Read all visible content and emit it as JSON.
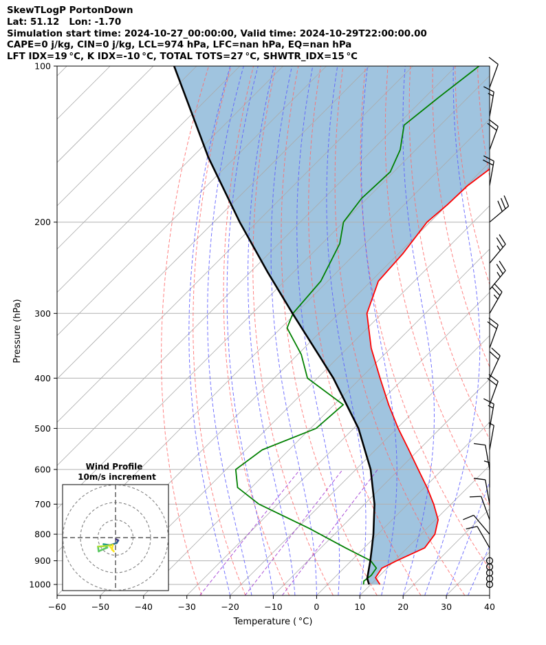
{
  "title_lines": [
    "SkewTLogP PortonDown",
    "Lat: 51.12   Lon: -1.70",
    "Simulation start time: 2024-10-27_00:00:00, Valid time: 2024-10-29T22:00:00.00",
    "CAPE=0 j/kg, CIN=0 j/kg, LCL=974 hPa, LFC=nan hPa, EQ=nan hPa",
    "LFT IDX=19 °C, K IDX=-10 °C, TOTAL TOTS=27 °C, SHWTR_IDX=15 °C"
  ],
  "colors": {
    "temperature": "#ff0000",
    "dewpoint": "#008000",
    "parcel": "#000000",
    "shade": "#a0c4df",
    "dry_adiabat": "#ff6b6b",
    "moist_adiabat": "#5a5aff",
    "mixing_ratio": "#9b30d0",
    "isotherm": "#aaaaaa"
  },
  "chart_data": {
    "type": "skewt",
    "xlabel": "Temperature ( °C)",
    "ylabel": "Pressure (hPa)",
    "xlim": [
      -60,
      40
    ],
    "ylim": [
      1050,
      100
    ],
    "x_ticks": [
      -60,
      -50,
      -40,
      -30,
      -20,
      -10,
      0,
      10,
      20,
      30,
      40
    ],
    "x_tick_labels": [
      "−60",
      "−50",
      "−40",
      "−30",
      "−20",
      "−10",
      "0",
      "10",
      "20",
      "30",
      "40"
    ],
    "y_ticks": [
      1000,
      900,
      800,
      700,
      600,
      500,
      400,
      300,
      200,
      100
    ],
    "y_tick_labels": [
      "1000",
      "900",
      "800",
      "700",
      "600",
      "500",
      "400",
      "300",
      "200",
      "100"
    ],
    "y_scale": "log",
    "grid": true,
    "temperature_profile": [
      {
        "p": 1000,
        "t": 12.1
      },
      {
        "p": 970,
        "t": 9.5
      },
      {
        "p": 930,
        "t": 8.8
      },
      {
        "p": 900,
        "t": 10.5
      },
      {
        "p": 850,
        "t": 14.0
      },
      {
        "p": 800,
        "t": 13.2
      },
      {
        "p": 750,
        "t": 10.6
      },
      {
        "p": 700,
        "t": 6.0
      },
      {
        "p": 650,
        "t": 0.6
      },
      {
        "p": 600,
        "t": -5.6
      },
      {
        "p": 550,
        "t": -12.3
      },
      {
        "p": 500,
        "t": -19.7
      },
      {
        "p": 450,
        "t": -27.4
      },
      {
        "p": 400,
        "t": -35.5
      },
      {
        "p": 350,
        "t": -44.5
      },
      {
        "p": 300,
        "t": -53.5
      },
      {
        "p": 260,
        "t": -58.3
      },
      {
        "p": 230,
        "t": -59.0
      },
      {
        "p": 200,
        "t": -60.7
      },
      {
        "p": 185,
        "t": -60.0
      },
      {
        "p": 170,
        "t": -59.7
      },
      {
        "p": 140,
        "t": -56.4
      },
      {
        "p": 120,
        "t": -55.4
      },
      {
        "p": 100,
        "t": -57.0
      }
    ],
    "dewpoint_profile": [
      {
        "p": 1000,
        "t": 8.3
      },
      {
        "p": 985,
        "t": 7.6
      },
      {
        "p": 960,
        "t": 8.0
      },
      {
        "p": 930,
        "t": 7.5
      },
      {
        "p": 900,
        "t": 4.5
      },
      {
        "p": 850,
        "t": -4.3
      },
      {
        "p": 780,
        "t": -17.1
      },
      {
        "p": 700,
        "t": -34.4
      },
      {
        "p": 650,
        "t": -43.2
      },
      {
        "p": 600,
        "t": -47.8
      },
      {
        "p": 550,
        "t": -46.2
      },
      {
        "p": 500,
        "t": -38.7
      },
      {
        "p": 450,
        "t": -37.9
      },
      {
        "p": 400,
        "t": -52.3
      },
      {
        "p": 360,
        "t": -59.2
      },
      {
        "p": 320,
        "t": -68.6
      },
      {
        "p": 300,
        "t": -70.6
      },
      {
        "p": 260,
        "t": -71.6
      },
      {
        "p": 220,
        "t": -75.9
      },
      {
        "p": 200,
        "t": -80.0
      },
      {
        "p": 180,
        "t": -81.3
      },
      {
        "p": 160,
        "t": -80.8
      },
      {
        "p": 145,
        "t": -83.6
      },
      {
        "p": 130,
        "t": -88.4
      },
      {
        "p": 115,
        "t": -86.8
      },
      {
        "p": 100,
        "t": -84.7
      }
    ],
    "parcel_profile": [
      {
        "p": 1000,
        "t": 9.6
      },
      {
        "p": 974,
        "t": 7.8
      },
      {
        "p": 900,
        "t": 4.4
      },
      {
        "p": 850,
        "t": 1.8
      },
      {
        "p": 800,
        "t": -1.0
      },
      {
        "p": 700,
        "t": -7.7
      },
      {
        "p": 600,
        "t": -16.6
      },
      {
        "p": 500,
        "t": -28.9
      },
      {
        "p": 400,
        "t": -46.3
      },
      {
        "p": 300,
        "t": -70.7
      },
      {
        "p": 250,
        "t": -85.9
      },
      {
        "p": 200,
        "t": -104.0
      },
      {
        "p": 150,
        "t": -126.2
      },
      {
        "p": 100,
        "t": -155.2
      }
    ],
    "wind_barbs": [
      {
        "p": 1000,
        "speed_kt": 0
      },
      {
        "p": 975,
        "speed_kt": 0
      },
      {
        "p": 950,
        "speed_kt": 0
      },
      {
        "p": 925,
        "speed_kt": 0
      },
      {
        "p": 900,
        "speed_kt": 0
      },
      {
        "p": 850,
        "speed_kt": 10,
        "dir": 330
      },
      {
        "p": 800,
        "speed_kt": 10,
        "dir": 320
      },
      {
        "p": 750,
        "speed_kt": 10,
        "dir": 340
      },
      {
        "p": 700,
        "speed_kt": 10,
        "dir": 350
      },
      {
        "p": 650,
        "speed_kt": 5,
        "dir": 360
      },
      {
        "p": 600,
        "speed_kt": 10,
        "dir": 350
      },
      {
        "p": 550,
        "speed_kt": 5,
        "dir": 10
      },
      {
        "p": 500,
        "speed_kt": 15,
        "dir": 10
      },
      {
        "p": 450,
        "speed_kt": 20,
        "dir": 20
      },
      {
        "p": 400,
        "speed_kt": 20,
        "dir": 25
      },
      {
        "p": 350,
        "speed_kt": 20,
        "dir": 20
      },
      {
        "p": 300,
        "speed_kt": 25,
        "dir": 30
      },
      {
        "p": 270,
        "speed_kt": 25,
        "dir": 40
      },
      {
        "p": 240,
        "speed_kt": 25,
        "dir": 40
      },
      {
        "p": 200,
        "speed_kt": 30,
        "dir": 50
      },
      {
        "p": 170,
        "speed_kt": 20,
        "dir": 10
      },
      {
        "p": 145,
        "speed_kt": 20,
        "dir": 20
      },
      {
        "p": 125,
        "speed_kt": 15,
        "dir": 10
      },
      {
        "p": 110,
        "speed_kt": 10,
        "dir": 20
      }
    ],
    "hodograph": {
      "title": "Wind Profile",
      "subtitle": "10m/s increment",
      "ring_increment_ms": 10,
      "points": [
        {
          "u": 0.2,
          "v": -0.5,
          "c": "#440154"
        },
        {
          "u": 0.8,
          "v": -0.8,
          "c": "#46327e"
        },
        {
          "u": 0.3,
          "v": -1.6,
          "c": "#3b518b"
        },
        {
          "u": -1.6,
          "v": -2.2,
          "c": "#2c718e"
        },
        {
          "u": -3.5,
          "v": -1.9,
          "c": "#21908d"
        },
        {
          "u": -2.4,
          "v": -2.9,
          "c": "#27ad81"
        },
        {
          "u": -4.1,
          "v": -3.6,
          "c": "#5cc863"
        },
        {
          "u": -4.9,
          "v": -4.0,
          "c": "#5cc863"
        },
        {
          "u": -5.1,
          "v": -2.6,
          "c": "#5cc863"
        },
        {
          "u": -3.4,
          "v": -2.5,
          "c": "#aadc32"
        },
        {
          "u": -0.8,
          "v": -2.1,
          "c": "#aadc32"
        },
        {
          "u": -1.0,
          "v": -3.5,
          "c": "#fde725"
        },
        {
          "u": -0.5,
          "v": -4.0,
          "c": "#fde725"
        },
        {
          "u": -1.6,
          "v": -2.6,
          "c": "#fde725"
        }
      ]
    }
  }
}
